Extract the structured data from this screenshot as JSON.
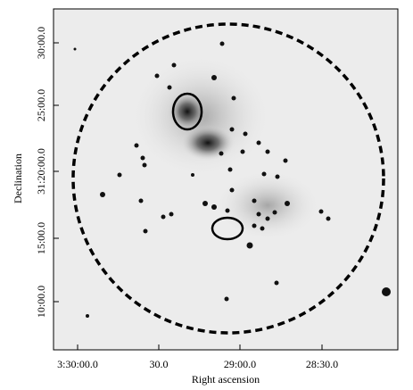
{
  "axes": {
    "x_label": "Right ascension",
    "y_label": "Declination",
    "x_ticks": [
      "3:30:00.0",
      "30.0",
      "29:00.0",
      "28:30.0"
    ],
    "y_ticks": [
      "30:00.0",
      "25:00.0",
      "31:20:00.0",
      "15:00.0",
      "10:00.0"
    ]
  }
}
